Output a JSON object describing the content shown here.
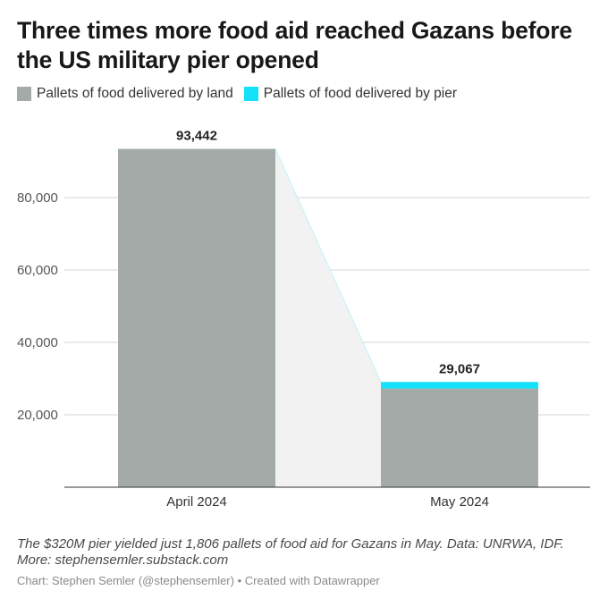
{
  "title": "Three times more food aid reached Gazans before the US military pier opened",
  "legend": [
    {
      "label": "Pallets of food delivered by land",
      "color": "#a4aaa7"
    },
    {
      "label": "Pallets of food delivered by pier",
      "color": "#14e1fa"
    }
  ],
  "notes": "The $320M pier yielded just 1,806 pallets of food aid for Gazans in May. Data: UNRWA, IDF. More: stephensemler.substack.com",
  "credit": "Chart: Stephen Semler (@stephensemler) • Created with Datawrapper",
  "chart_data": {
    "type": "bar",
    "stacked": true,
    "categories": [
      "April 2024",
      "May 2024"
    ],
    "series": [
      {
        "name": "Pallets of food delivered by land",
        "values": [
          93442,
          27261
        ],
        "color": "#a4aaa7"
      },
      {
        "name": "Pallets of food delivered by pier",
        "values": [
          0,
          1806
        ],
        "color": "#14e1fa"
      }
    ],
    "totals": [
      93442,
      29067
    ],
    "total_labels": [
      "93,442",
      "29,067"
    ],
    "ylim": [
      0,
      100000
    ],
    "yticks": [
      20000,
      40000,
      60000,
      80000
    ],
    "ytick_labels": [
      "20,000",
      "40,000",
      "60,000",
      "80,000"
    ],
    "grid": true,
    "legend_position": "top-left"
  }
}
